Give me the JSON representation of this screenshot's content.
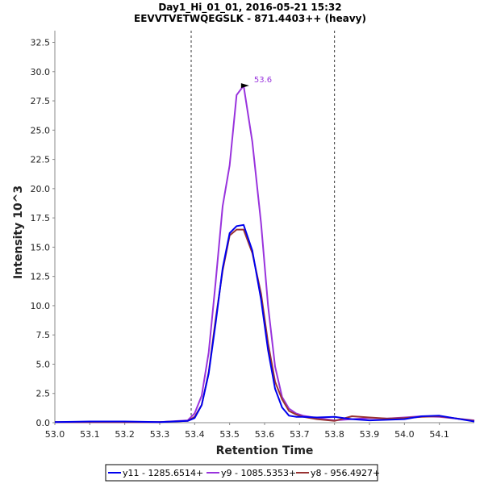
{
  "chart_data": {
    "type": "line",
    "title": "Day1_Hi_01_01, 2016-05-21 15:32",
    "subtitle": "EEVVTVETWQEGSLK - 871.4403++ (heavy)",
    "xlabel": "Retention Time",
    "ylabel": "Intensity 10^3",
    "xlim": [
      53.0,
      54.2
    ],
    "ylim": [
      0,
      33.5
    ],
    "xticks": [
      "53.0",
      "53.1",
      "53.2",
      "53.3",
      "53.4",
      "53.5",
      "53.6",
      "53.7",
      "53.8",
      "53.9",
      "54.0",
      "54.1"
    ],
    "yticks": [
      "0.0",
      "2.5",
      "5.0",
      "7.5",
      "10.0",
      "12.5",
      "15.0",
      "17.5",
      "20.0",
      "22.5",
      "25.0",
      "27.5",
      "30.0",
      "32.5"
    ],
    "boundaries": [
      53.39,
      53.8
    ],
    "peak_annotation": {
      "label": "53.6",
      "x": 53.565,
      "y": 28.8,
      "color": "#9933dd"
    },
    "series": [
      {
        "name": "y9 - 1085.5353+",
        "color": "#9933dd",
        "x": [
          53.0,
          53.1,
          53.2,
          53.3,
          53.38,
          53.4,
          53.42,
          53.44,
          53.46,
          53.48,
          53.5,
          53.52,
          53.54,
          53.565,
          53.59,
          53.61,
          53.63,
          53.65,
          53.67,
          53.69,
          53.71,
          53.75,
          53.8,
          53.85,
          53.9,
          53.95,
          54.0,
          54.05,
          54.1,
          54.2
        ],
        "values": [
          0.05,
          0.05,
          0.05,
          0.05,
          0.2,
          0.8,
          2.3,
          6.0,
          12.0,
          18.5,
          22.0,
          28.0,
          28.8,
          24.0,
          17.0,
          10.0,
          4.8,
          2.2,
          1.2,
          0.8,
          0.6,
          0.4,
          0.2,
          0.3,
          0.4,
          0.35,
          0.45,
          0.55,
          0.5,
          0.2
        ]
      },
      {
        "name": "y8 - 956.4927+",
        "color": "#993333",
        "x": [
          53.0,
          53.1,
          53.2,
          53.3,
          53.38,
          53.4,
          53.42,
          53.44,
          53.46,
          53.48,
          53.5,
          53.52,
          53.54,
          53.565,
          53.59,
          53.61,
          53.63,
          53.65,
          53.67,
          53.69,
          53.71,
          53.75,
          53.8,
          53.85,
          53.9,
          53.95,
          54.0,
          54.05,
          54.1,
          54.2
        ],
        "values": [
          0.05,
          0.05,
          0.05,
          0.05,
          0.15,
          0.5,
          1.5,
          4.3,
          8.8,
          13.0,
          16.0,
          16.5,
          16.5,
          14.5,
          11.0,
          6.8,
          3.5,
          2.0,
          1.0,
          0.7,
          0.5,
          0.3,
          0.15,
          0.55,
          0.45,
          0.35,
          0.4,
          0.5,
          0.55,
          0.15
        ]
      },
      {
        "name": "y11 - 1285.6514+",
        "color": "#0000ee",
        "x": [
          53.0,
          53.1,
          53.2,
          53.3,
          53.38,
          53.4,
          53.42,
          53.44,
          53.46,
          53.48,
          53.5,
          53.52,
          53.54,
          53.565,
          53.59,
          53.61,
          53.63,
          53.65,
          53.67,
          53.69,
          53.71,
          53.75,
          53.8,
          53.85,
          53.9,
          53.95,
          54.0,
          54.05,
          54.1,
          54.2
        ],
        "values": [
          0.05,
          0.1,
          0.1,
          0.05,
          0.15,
          0.4,
          1.5,
          4.2,
          8.5,
          13.2,
          16.2,
          16.8,
          16.9,
          14.7,
          10.5,
          6.2,
          2.9,
          1.3,
          0.6,
          0.5,
          0.5,
          0.45,
          0.5,
          0.3,
          0.2,
          0.25,
          0.3,
          0.55,
          0.6,
          0.1
        ]
      }
    ],
    "legend": {
      "position": "bottom",
      "entries": [
        {
          "name": "y11 - 1285.6514+",
          "color": "#0000ee"
        },
        {
          "name": "y9 - 1085.5353+",
          "color": "#9933dd"
        },
        {
          "name": "y8 - 956.4927+",
          "color": "#993333"
        }
      ]
    }
  }
}
